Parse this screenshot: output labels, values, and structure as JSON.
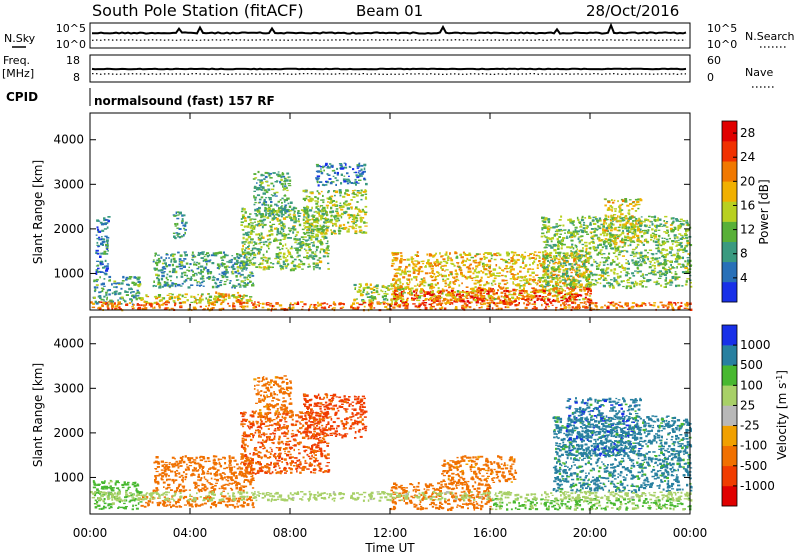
{
  "header": {
    "station": "South Pole Station (fitACF)",
    "beam": "Beam 01",
    "date": "28/Oct/2016"
  },
  "aux_panels": {
    "nsky": {
      "label": "N.Sky",
      "ticks": [
        "10^5",
        "10^0"
      ],
      "right_label": "N.Search",
      "right_ticks": [
        "10^5",
        "10^0"
      ]
    },
    "freq": {
      "label_line1": "Freq.",
      "label_line2": "[MHz]",
      "ticks": [
        "18",
        "8"
      ],
      "right_label": "Nave",
      "right_ticks": [
        "60",
        "0"
      ]
    },
    "cpid": {
      "label": "CPID",
      "text": "normalsound (fast) 157 RF"
    }
  },
  "colors": {
    "power": [
      "#1830e8",
      "#2870b8",
      "#3a9a80",
      "#58b038",
      "#b8d020",
      "#f0b000",
      "#f07800",
      "#f03000",
      "#e00000"
    ],
    "velocity": [
      "#e00000",
      "#f03c00",
      "#f07000",
      "#f0a000",
      "#b8b8b8",
      "#a8d068",
      "#48b830",
      "#2880a0",
      "#1830e8"
    ]
  },
  "chart_data": [
    {
      "type": "heatmap",
      "name": "power",
      "ylabel": "Slant Range [km]",
      "xlabel": "Time UT",
      "y_ticks": [
        "1000",
        "2000",
        "3000",
        "4000"
      ],
      "y_tick_values": [
        1000,
        2000,
        3000,
        4000
      ],
      "ylim": [
        180,
        4600
      ],
      "x_ticks": [
        "00:00",
        "04:00",
        "08:00",
        "12:00",
        "16:00",
        "20:00",
        "00:00"
      ],
      "x_tick_hours": [
        0,
        4,
        8,
        12,
        16,
        20,
        24
      ],
      "xlim_hours": [
        0,
        24
      ],
      "colorbar": {
        "label": "Power [dB]",
        "ticks": [
          "4",
          "8",
          "12",
          "16",
          "20",
          "24",
          "28"
        ],
        "tick_values": [
          4,
          8,
          12,
          16,
          20,
          24,
          28
        ],
        "range": [
          0,
          30
        ]
      },
      "echo_regions": [
        {
          "t": [
            0.1,
            2.0
          ],
          "r": [
            300,
            950
          ],
          "value": 9
        },
        {
          "t": [
            0.2,
            0.7
          ],
          "r": [
            1000,
            2300
          ],
          "value": 6
        },
        {
          "t": [
            2.0,
            6.5
          ],
          "r": [
            350,
            560
          ],
          "value": 16
        },
        {
          "t": [
            2.5,
            6.5
          ],
          "r": [
            700,
            1500
          ],
          "value": 9
        },
        {
          "t": [
            3.3,
            3.8
          ],
          "r": [
            1800,
            2400
          ],
          "value": 8
        },
        {
          "t": [
            5.0,
            6.0
          ],
          "r": [
            400,
            600
          ],
          "value": 20
        },
        {
          "t": [
            6.0,
            9.5
          ],
          "r": [
            1100,
            2500
          ],
          "value": 12
        },
        {
          "t": [
            6.5,
            8.0
          ],
          "r": [
            2300,
            3300
          ],
          "value": 10
        },
        {
          "t": [
            8.5,
            11.0
          ],
          "r": [
            1900,
            2900
          ],
          "value": 14
        },
        {
          "t": [
            9.0,
            11.0
          ],
          "r": [
            3000,
            3500
          ],
          "value": 6
        },
        {
          "t": [
            10.5,
            12.5
          ],
          "r": [
            350,
            800
          ],
          "value": 14
        },
        {
          "t": [
            12.0,
            15.5
          ],
          "r": [
            300,
            650
          ],
          "value": 28
        },
        {
          "t": [
            12.0,
            20.0
          ],
          "r": [
            400,
            1500
          ],
          "value": 18
        },
        {
          "t": [
            15.5,
            20.0
          ],
          "r": [
            350,
            700
          ],
          "value": 24
        },
        {
          "t": [
            18.0,
            24.0
          ],
          "r": [
            700,
            2300
          ],
          "value": 12
        },
        {
          "t": [
            20.5,
            22.0
          ],
          "r": [
            1700,
            2700
          ],
          "value": 16
        },
        {
          "t": [
            0.0,
            24.0
          ],
          "r": [
            200,
            380
          ],
          "value": 22
        }
      ]
    },
    {
      "type": "heatmap",
      "name": "velocity",
      "ylabel": "Slant Range [km]",
      "xlabel": "Time UT",
      "y_ticks": [
        "1000",
        "2000",
        "3000",
        "4000"
      ],
      "y_tick_values": [
        1000,
        2000,
        3000,
        4000
      ],
      "ylim": [
        180,
        4600
      ],
      "x_ticks": [
        "00:00",
        "04:00",
        "08:00",
        "12:00",
        "16:00",
        "20:00",
        "00:00"
      ],
      "x_tick_hours": [
        0,
        4,
        8,
        12,
        16,
        20,
        24
      ],
      "xlim_hours": [
        0,
        24
      ],
      "colorbar": {
        "label": "Velocity [m s",
        "label_sup": "-1",
        "label_end": "]",
        "ticks": [
          "-1000",
          "-500",
          "-100",
          "-25",
          "25",
          "100",
          "500",
          "1000"
        ],
        "tick_values": [
          -1000,
          -500,
          -100,
          -25,
          25,
          100,
          500,
          1000
        ]
      },
      "echo_regions": [
        {
          "t": [
            0.1,
            2.0
          ],
          "r": [
            300,
            950
          ],
          "value": 150
        },
        {
          "t": [
            2.0,
            6.5
          ],
          "r": [
            350,
            600
          ],
          "value": -300
        },
        {
          "t": [
            2.5,
            6.5
          ],
          "r": [
            700,
            1500
          ],
          "value": -200
        },
        {
          "t": [
            6.0,
            9.5
          ],
          "r": [
            1100,
            2500
          ],
          "value": -500
        },
        {
          "t": [
            6.5,
            8.0
          ],
          "r": [
            2300,
            3300
          ],
          "value": -150
        },
        {
          "t": [
            8.5,
            11.0
          ],
          "r": [
            1900,
            2900
          ],
          "value": -700
        },
        {
          "t": [
            12.0,
            16.0
          ],
          "r": [
            300,
            900
          ],
          "value": -300
        },
        {
          "t": [
            14.0,
            17.0
          ],
          "r": [
            900,
            1500
          ],
          "value": -150
        },
        {
          "t": [
            16.0,
            24.0
          ],
          "r": [
            300,
            550
          ],
          "value": 120
        },
        {
          "t": [
            18.5,
            24.0
          ],
          "r": [
            700,
            2400
          ],
          "value": 700
        },
        {
          "t": [
            19.0,
            22.0
          ],
          "r": [
            1500,
            2800
          ],
          "value": 800
        },
        {
          "t": [
            0.0,
            24.0
          ],
          "r": [
            500,
            700
          ],
          "value": 40
        }
      ]
    }
  ]
}
